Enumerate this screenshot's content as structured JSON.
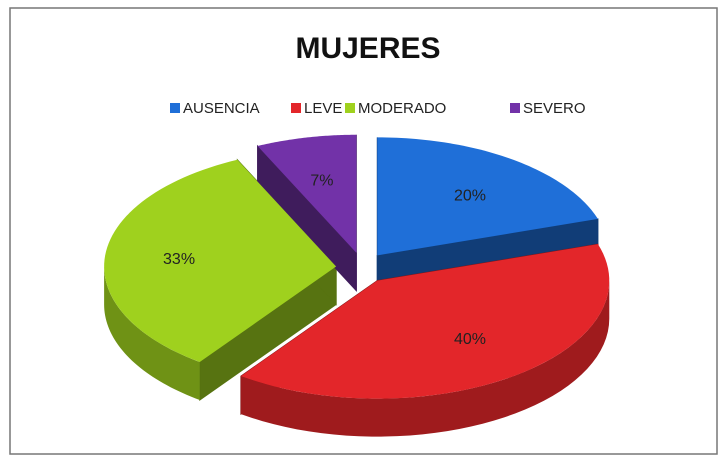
{
  "chart_data": {
    "type": "pie",
    "title": "MUJERES",
    "categories": [
      "AUSENCIA",
      "LEVE",
      "MODERADO",
      "SEVERO"
    ],
    "values": [
      20,
      40,
      33,
      7
    ],
    "value_labels": [
      "20%",
      "40%",
      "33%",
      "7%"
    ],
    "colors": [
      "#1f6fd8",
      "#e3262a",
      "#9fd11e",
      "#7232a8"
    ],
    "legend": "top"
  }
}
